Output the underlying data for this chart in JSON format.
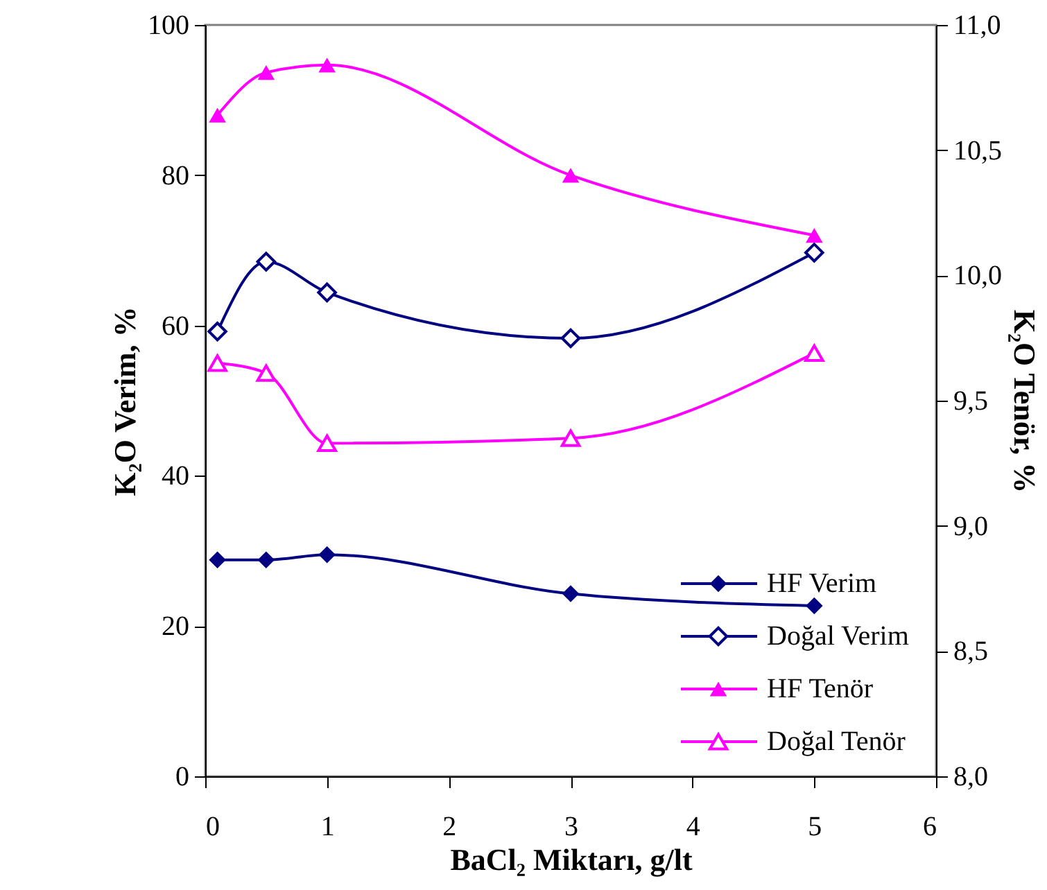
{
  "chart_data": {
    "type": "line",
    "xlabel": "BaCl₂ Miktarı, g/lt",
    "ylabel": "K₂O Verim, %",
    "y2label": "K₂O Tenör, %",
    "xlim": [
      0,
      6
    ],
    "xticks": [
      0,
      1,
      2,
      3,
      4,
      5,
      6
    ],
    "ylim": [
      0,
      100
    ],
    "yticks": [
      0,
      20,
      40,
      60,
      80,
      100
    ],
    "y2lim": [
      8.0,
      11.0
    ],
    "y2ticks": [
      {
        "value": 8.0,
        "label": "8,0"
      },
      {
        "value": 8.5,
        "label": "8,5"
      },
      {
        "value": 9.0,
        "label": "9,0"
      },
      {
        "value": 9.5,
        "label": "9,5"
      },
      {
        "value": 10.0,
        "label": "10,0"
      },
      {
        "value": 10.5,
        "label": "10,5"
      },
      {
        "value": 11.0,
        "label": "11,0"
      }
    ],
    "x": [
      0.1,
      0.5,
      1,
      3,
      5
    ],
    "grid": false,
    "legend": "bottom right",
    "line_style": "solid",
    "series": [
      {
        "name": "HF Verim",
        "color": "#000080",
        "marker": "diamond",
        "values": [
          28.8,
          28.8,
          29.5,
          24.3,
          22.7
        ]
      },
      {
        "name": "Doğal Verim",
        "color": "#000080",
        "marker": "diamond",
        "values": [
          59.2,
          68.5,
          64.4,
          58.3,
          69.7
        ]
      },
      {
        "name": "HF Tenör",
        "color": "#ff00ff",
        "marker": "triangle",
        "axis": "y2",
        "values": [
          10.64,
          10.81,
          10.84,
          10.4,
          10.16
        ]
      },
      {
        "name": "Doğal Tenör",
        "color": "#ff00ff",
        "marker": "triangle",
        "axis": "y2",
        "values": [
          9.65,
          9.61,
          9.33,
          9.35,
          9.69
        ]
      }
    ]
  }
}
